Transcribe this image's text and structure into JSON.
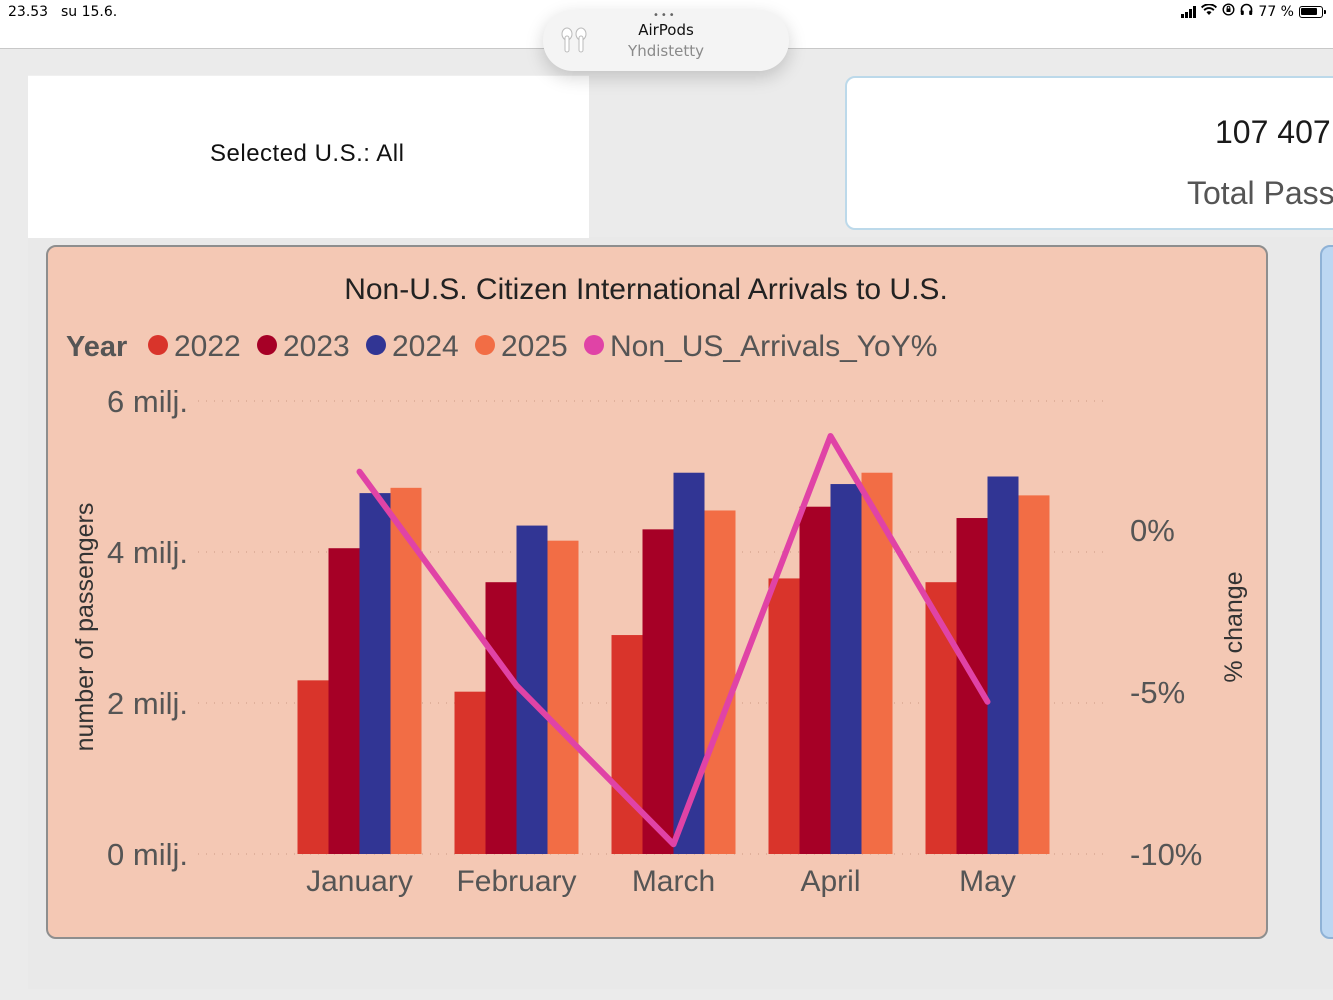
{
  "status_bar": {
    "time": "23.53",
    "date": "su 15.6.",
    "battery": "77 %"
  },
  "airpods_popup": {
    "title": "AirPods",
    "subtitle": "Yhdistetty"
  },
  "selected_card": {
    "text": "Selected U.S.: All"
  },
  "kpi_card": {
    "value": "107 407",
    "label": "Total Passe"
  },
  "chart_data": {
    "type": "bar",
    "title": "Non-U.S. Citizen International Arrivals to U.S.",
    "legend_title": "Year",
    "legend_position": "top-left",
    "categories": [
      "January",
      "February",
      "March",
      "April",
      "May"
    ],
    "series": [
      {
        "name": "2022",
        "color": "#d9342b",
        "values": [
          2.3,
          2.15,
          2.9,
          3.65,
          3.6
        ]
      },
      {
        "name": "2023",
        "color": "#a60026",
        "values": [
          4.05,
          3.6,
          4.3,
          4.6,
          4.45
        ]
      },
      {
        "name": "2024",
        "color": "#313594",
        "values": [
          4.78,
          4.35,
          5.05,
          4.9,
          5.0
        ]
      },
      {
        "name": "2025",
        "color": "#f26d45",
        "values": [
          4.85,
          4.15,
          4.55,
          5.05,
          4.75
        ]
      }
    ],
    "line_series": {
      "name": "Non_US_Arrivals_YoY%",
      "color": "#e043a6",
      "values": [
        1.8,
        -4.8,
        -9.7,
        2.9,
        -5.3
      ]
    },
    "ylabel": "number of passengers",
    "y_ticks": [
      "0 milj.",
      "2 milj.",
      "4 milj.",
      "6 milj."
    ],
    "ylim": [
      0,
      6
    ],
    "y2label": "% change",
    "y2_ticks": [
      "-10%",
      "-5%",
      "0%"
    ],
    "y2lim": [
      -10,
      0
    ],
    "grid": true
  }
}
